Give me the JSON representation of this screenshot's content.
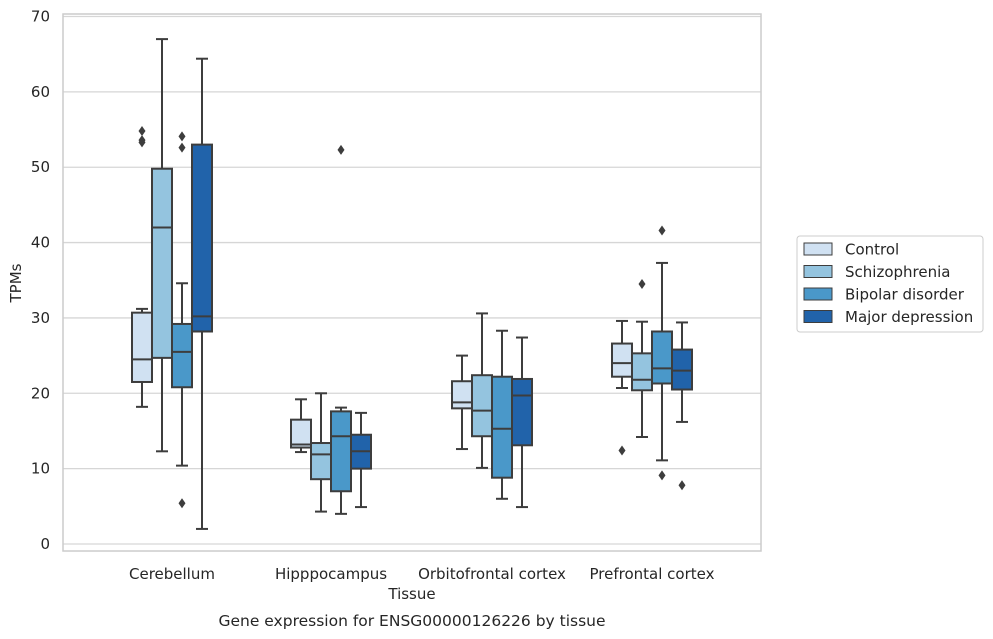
{
  "chart_data": {
    "type": "box",
    "title": "",
    "caption": "Gene expression for ENSG00000126226 by tissue",
    "xlabel": "Tissue",
    "ylabel": "TPMs",
    "ylim": [
      -1,
      70.5
    ],
    "yticks": [
      0,
      10,
      20,
      30,
      40,
      50,
      60,
      70
    ],
    "grid": "horizontal",
    "legend_position": "right",
    "categories": [
      "Cerebellum",
      "Hipppocampus",
      "Orbitofrontal cortex",
      "Prefrontal cortex"
    ],
    "series": [
      {
        "name": "Control",
        "color": "#d0e1f2",
        "boxes": [
          {
            "whislo": 18.2,
            "q1": 21.5,
            "med": 24.5,
            "q3": 30.7,
            "whishi": 31.2,
            "fliers": [
              53.3,
              53.6,
              54.8
            ]
          },
          {
            "whislo": 12.2,
            "q1": 12.8,
            "med": 13.2,
            "q3": 16.5,
            "whishi": 19.2,
            "fliers": []
          },
          {
            "whislo": 12.6,
            "q1": 18.0,
            "med": 18.8,
            "q3": 21.6,
            "whishi": 25.0,
            "fliers": []
          },
          {
            "whislo": 20.7,
            "q1": 22.2,
            "med": 24.0,
            "q3": 26.6,
            "whishi": 29.6,
            "fliers": [
              12.4
            ]
          }
        ]
      },
      {
        "name": "Schizophrenia",
        "color": "#94c4df",
        "boxes": [
          {
            "whislo": 12.3,
            "q1": 24.7,
            "med": 42.0,
            "q3": 49.8,
            "whishi": 67.0,
            "fliers": []
          },
          {
            "whislo": 4.3,
            "q1": 8.6,
            "med": 11.9,
            "q3": 13.4,
            "whishi": 20.0,
            "fliers": []
          },
          {
            "whislo": 10.1,
            "q1": 14.3,
            "med": 17.7,
            "q3": 22.4,
            "whishi": 30.6,
            "fliers": []
          },
          {
            "whislo": 14.2,
            "q1": 20.4,
            "med": 21.8,
            "q3": 25.3,
            "whishi": 29.5,
            "fliers": [
              34.5
            ]
          }
        ]
      },
      {
        "name": "Bipolar disorder",
        "color": "#4a98c9",
        "boxes": [
          {
            "whislo": 10.4,
            "q1": 20.8,
            "med": 25.5,
            "q3": 29.2,
            "whishi": 34.6,
            "fliers": [
              5.4,
              52.6,
              54.1
            ]
          },
          {
            "whislo": 4.0,
            "q1": 7.0,
            "med": 14.3,
            "q3": 17.6,
            "whishi": 18.1,
            "fliers": [
              52.3
            ]
          },
          {
            "whislo": 6.0,
            "q1": 8.8,
            "med": 15.3,
            "q3": 22.2,
            "whishi": 28.3,
            "fliers": []
          },
          {
            "whislo": 11.1,
            "q1": 21.3,
            "med": 23.3,
            "q3": 28.2,
            "whishi": 37.3,
            "fliers": [
              9.1,
              41.6
            ]
          }
        ]
      },
      {
        "name": "Major depression",
        "color": "#2163aa",
        "boxes": [
          {
            "whislo": 2.0,
            "q1": 28.2,
            "med": 30.2,
            "q3": 53.0,
            "whishi": 64.4,
            "fliers": []
          },
          {
            "whislo": 4.9,
            "q1": 10.0,
            "med": 12.3,
            "q3": 14.5,
            "whishi": 17.4,
            "fliers": []
          },
          {
            "whislo": 4.9,
            "q1": 13.1,
            "med": 19.7,
            "q3": 21.9,
            "whishi": 27.4,
            "fliers": []
          },
          {
            "whislo": 16.2,
            "q1": 20.5,
            "med": 23.0,
            "q3": 25.8,
            "whishi": 29.4,
            "fliers": [
              7.8
            ]
          }
        ]
      }
    ]
  }
}
